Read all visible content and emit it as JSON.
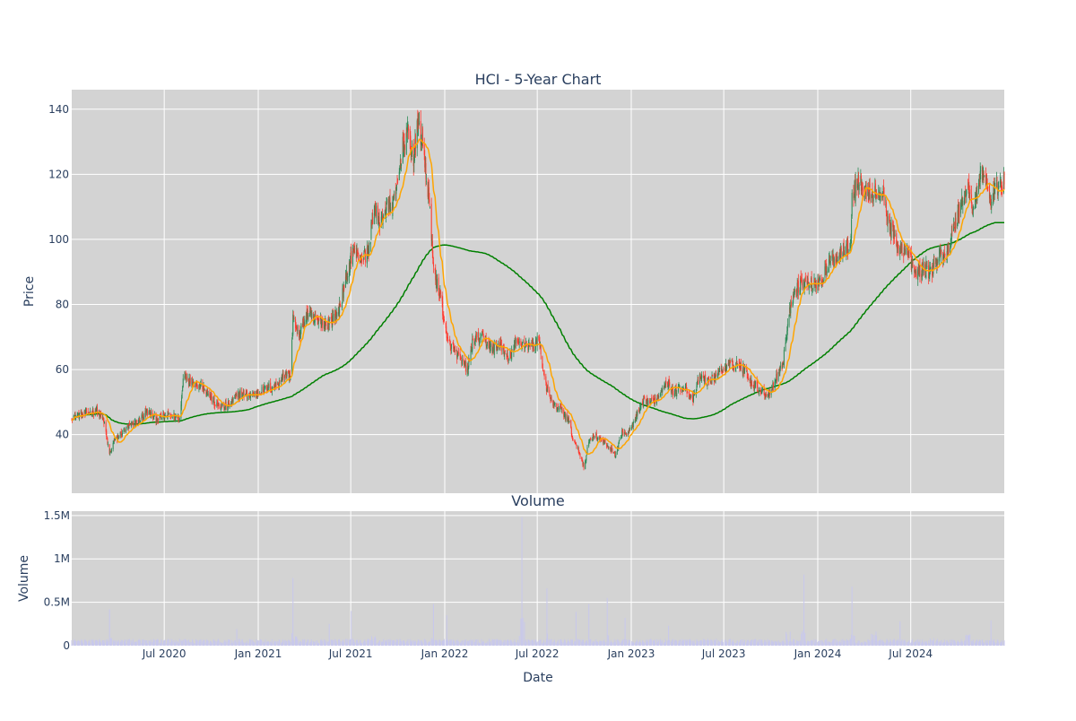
{
  "chart_data": [
    {
      "type": "candlestick",
      "title": "HCI - 5-Year Chart",
      "ylabel": "Price",
      "ylim": [
        22,
        146
      ],
      "yticks": [
        40,
        60,
        80,
        100,
        120,
        140
      ],
      "xrange": [
        "2020-01-02",
        "2024-12-31"
      ],
      "grid": true,
      "legend": "none",
      "colors": {
        "background": "#d3d3d3",
        "increasing": "#2e8b57",
        "decreasing": "#ff3b30",
        "ma_short": "#ffa500",
        "ma_long": "#008000"
      },
      "close_anchors": [
        [
          "2020-01-02",
          45.5
        ],
        [
          "2020-02-01",
          46.5
        ],
        [
          "2020-02-20",
          47.5
        ],
        [
          "2020-03-05",
          44
        ],
        [
          "2020-03-16",
          34
        ],
        [
          "2020-03-25",
          38
        ],
        [
          "2020-04-15",
          41.5
        ],
        [
          "2020-05-10",
          44
        ],
        [
          "2020-05-28",
          47
        ],
        [
          "2020-06-15",
          45
        ],
        [
          "2020-07-10",
          46
        ],
        [
          "2020-08-01",
          45
        ],
        [
          "2020-08-08",
          59
        ],
        [
          "2020-08-20",
          56.5
        ],
        [
          "2020-09-15",
          55
        ],
        [
          "2020-10-10",
          49
        ],
        [
          "2020-11-01",
          48.5
        ],
        [
          "2020-11-25",
          52.5
        ],
        [
          "2020-12-20",
          52
        ],
        [
          "2021-01-15",
          54
        ],
        [
          "2021-02-05",
          55
        ],
        [
          "2021-02-20",
          58.5
        ],
        [
          "2021-03-05",
          58
        ],
        [
          "2021-03-10",
          76
        ],
        [
          "2021-03-20",
          70
        ],
        [
          "2021-04-05",
          77
        ],
        [
          "2021-04-25",
          75
        ],
        [
          "2021-05-15",
          74
        ],
        [
          "2021-06-05",
          77
        ],
        [
          "2021-06-20",
          86
        ],
        [
          "2021-07-05",
          97
        ],
        [
          "2021-07-20",
          94
        ],
        [
          "2021-08-05",
          96
        ],
        [
          "2021-08-15",
          110
        ],
        [
          "2021-08-25",
          105
        ],
        [
          "2021-09-10",
          110
        ],
        [
          "2021-09-25",
          111
        ],
        [
          "2021-10-10",
          128
        ],
        [
          "2021-10-20",
          133
        ],
        [
          "2021-11-01",
          124
        ],
        [
          "2021-11-10",
          136
        ],
        [
          "2021-11-20",
          128
        ],
        [
          "2021-12-01",
          112
        ],
        [
          "2021-12-08",
          96
        ],
        [
          "2021-12-15",
          87
        ],
        [
          "2021-12-25",
          82
        ],
        [
          "2022-01-05",
          69
        ],
        [
          "2022-01-20",
          66
        ],
        [
          "2022-02-05",
          62
        ],
        [
          "2022-02-15",
          60
        ],
        [
          "2022-02-25",
          69
        ],
        [
          "2022-03-15",
          70
        ],
        [
          "2022-04-05",
          66
        ],
        [
          "2022-04-20",
          68
        ],
        [
          "2022-05-05",
          63
        ],
        [
          "2022-05-20",
          68
        ],
        [
          "2022-06-05",
          68
        ],
        [
          "2022-06-25",
          67
        ],
        [
          "2022-07-05",
          70
        ],
        [
          "2022-07-10",
          62
        ],
        [
          "2022-07-20",
          54
        ],
        [
          "2022-08-01",
          49
        ],
        [
          "2022-08-15",
          48
        ],
        [
          "2022-09-01",
          44
        ],
        [
          "2022-09-10",
          38
        ],
        [
          "2022-09-20",
          35
        ],
        [
          "2022-10-01",
          30
        ],
        [
          "2022-10-10",
          38
        ],
        [
          "2022-10-20",
          40
        ],
        [
          "2022-11-05",
          38
        ],
        [
          "2022-11-20",
          36
        ],
        [
          "2022-12-01",
          34
        ],
        [
          "2022-12-15",
          41
        ],
        [
          "2022-12-25",
          40
        ],
        [
          "2023-01-10",
          45
        ],
        [
          "2023-01-25",
          50
        ],
        [
          "2023-02-10",
          50
        ],
        [
          "2023-02-25",
          52
        ],
        [
          "2023-03-10",
          57
        ],
        [
          "2023-03-25",
          53
        ],
        [
          "2023-04-15",
          55
        ],
        [
          "2023-05-01",
          50
        ],
        [
          "2023-05-15",
          58
        ],
        [
          "2023-06-01",
          56
        ],
        [
          "2023-06-20",
          59
        ],
        [
          "2023-07-10",
          61
        ],
        [
          "2023-07-25",
          62
        ],
        [
          "2023-08-10",
          60
        ],
        [
          "2023-08-25",
          56
        ],
        [
          "2023-09-10",
          54
        ],
        [
          "2023-09-25",
          52
        ],
        [
          "2023-10-10",
          57
        ],
        [
          "2023-10-25",
          62
        ],
        [
          "2023-11-05",
          76
        ],
        [
          "2023-11-15",
          84
        ],
        [
          "2023-12-01",
          87
        ],
        [
          "2023-12-20",
          86
        ],
        [
          "2024-01-10",
          88
        ],
        [
          "2024-01-25",
          93
        ],
        [
          "2024-02-10",
          95
        ],
        [
          "2024-02-25",
          98
        ],
        [
          "2024-03-05",
          98
        ],
        [
          "2024-03-08",
          113
        ],
        [
          "2024-03-20",
          118
        ],
        [
          "2024-04-05",
          114
        ],
        [
          "2024-04-25",
          114
        ],
        [
          "2024-05-10",
          113
        ],
        [
          "2024-05-20",
          104
        ],
        [
          "2024-06-05",
          98
        ],
        [
          "2024-06-25",
          96
        ],
        [
          "2024-07-10",
          89
        ],
        [
          "2024-07-25",
          91
        ],
        [
          "2024-08-10",
          90
        ],
        [
          "2024-08-25",
          95
        ],
        [
          "2024-09-10",
          96
        ],
        [
          "2024-09-25",
          104
        ],
        [
          "2024-10-05",
          110
        ],
        [
          "2024-10-20",
          116
        ],
        [
          "2024-11-01",
          109
        ],
        [
          "2024-11-15",
          120
        ],
        [
          "2024-11-25",
          118
        ],
        [
          "2024-12-05",
          111
        ],
        [
          "2024-12-15",
          116
        ],
        [
          "2024-12-31",
          118
        ]
      ]
    },
    {
      "type": "bar",
      "title": "Volume",
      "ylabel": "Volume",
      "ylim": [
        0,
        1550000
      ],
      "ytick_values": [
        0,
        500000,
        1000000,
        1500000
      ],
      "ytick_labels": [
        "0",
        "0.5M",
        "1M",
        "1.5M"
      ],
      "bar_color": "#c8c8ec",
      "baseline_volume": 65000,
      "spikes": [
        [
          "2020-03-16",
          420000
        ],
        [
          "2020-08-08",
          350000
        ],
        [
          "2020-11-20",
          190000
        ],
        [
          "2021-03-10",
          780000
        ],
        [
          "2021-03-14",
          560000
        ],
        [
          "2021-05-20",
          250000
        ],
        [
          "2021-07-02",
          400000
        ],
        [
          "2021-08-15",
          520000
        ],
        [
          "2021-12-10",
          480000
        ],
        [
          "2022-01-05",
          350000
        ],
        [
          "2022-02-20",
          300000
        ],
        [
          "2022-04-10",
          380000
        ],
        [
          "2022-06-01",
          1480000
        ],
        [
          "2022-07-20",
          660000
        ],
        [
          "2022-09-15",
          390000
        ],
        [
          "2022-10-10",
          480000
        ],
        [
          "2022-11-15",
          550000
        ],
        [
          "2022-12-20",
          320000
        ],
        [
          "2023-03-15",
          230000
        ],
        [
          "2023-08-20",
          330000
        ],
        [
          "2023-11-05",
          750000
        ],
        [
          "2023-12-05",
          820000
        ],
        [
          "2024-03-08",
          680000
        ],
        [
          "2024-04-20",
          900000
        ],
        [
          "2024-06-10",
          280000
        ],
        [
          "2024-08-10",
          400000
        ],
        [
          "2024-10-20",
          660000
        ],
        [
          "2024-12-05",
          290000
        ]
      ]
    }
  ],
  "shared_x": {
    "label": "Date",
    "ticks": [
      {
        "date": "2020-07-01",
        "label": "Jul 2020"
      },
      {
        "date": "2021-01-01",
        "label": "Jan 2021"
      },
      {
        "date": "2021-07-01",
        "label": "Jul 2021"
      },
      {
        "date": "2022-01-01",
        "label": "Jan 2022"
      },
      {
        "date": "2022-07-01",
        "label": "Jul 2022"
      },
      {
        "date": "2023-01-01",
        "label": "Jan 2023"
      },
      {
        "date": "2023-07-01",
        "label": "Jul 2023"
      },
      {
        "date": "2024-01-01",
        "label": "Jan 2024"
      },
      {
        "date": "2024-07-01",
        "label": "Jul 2024"
      }
    ]
  }
}
